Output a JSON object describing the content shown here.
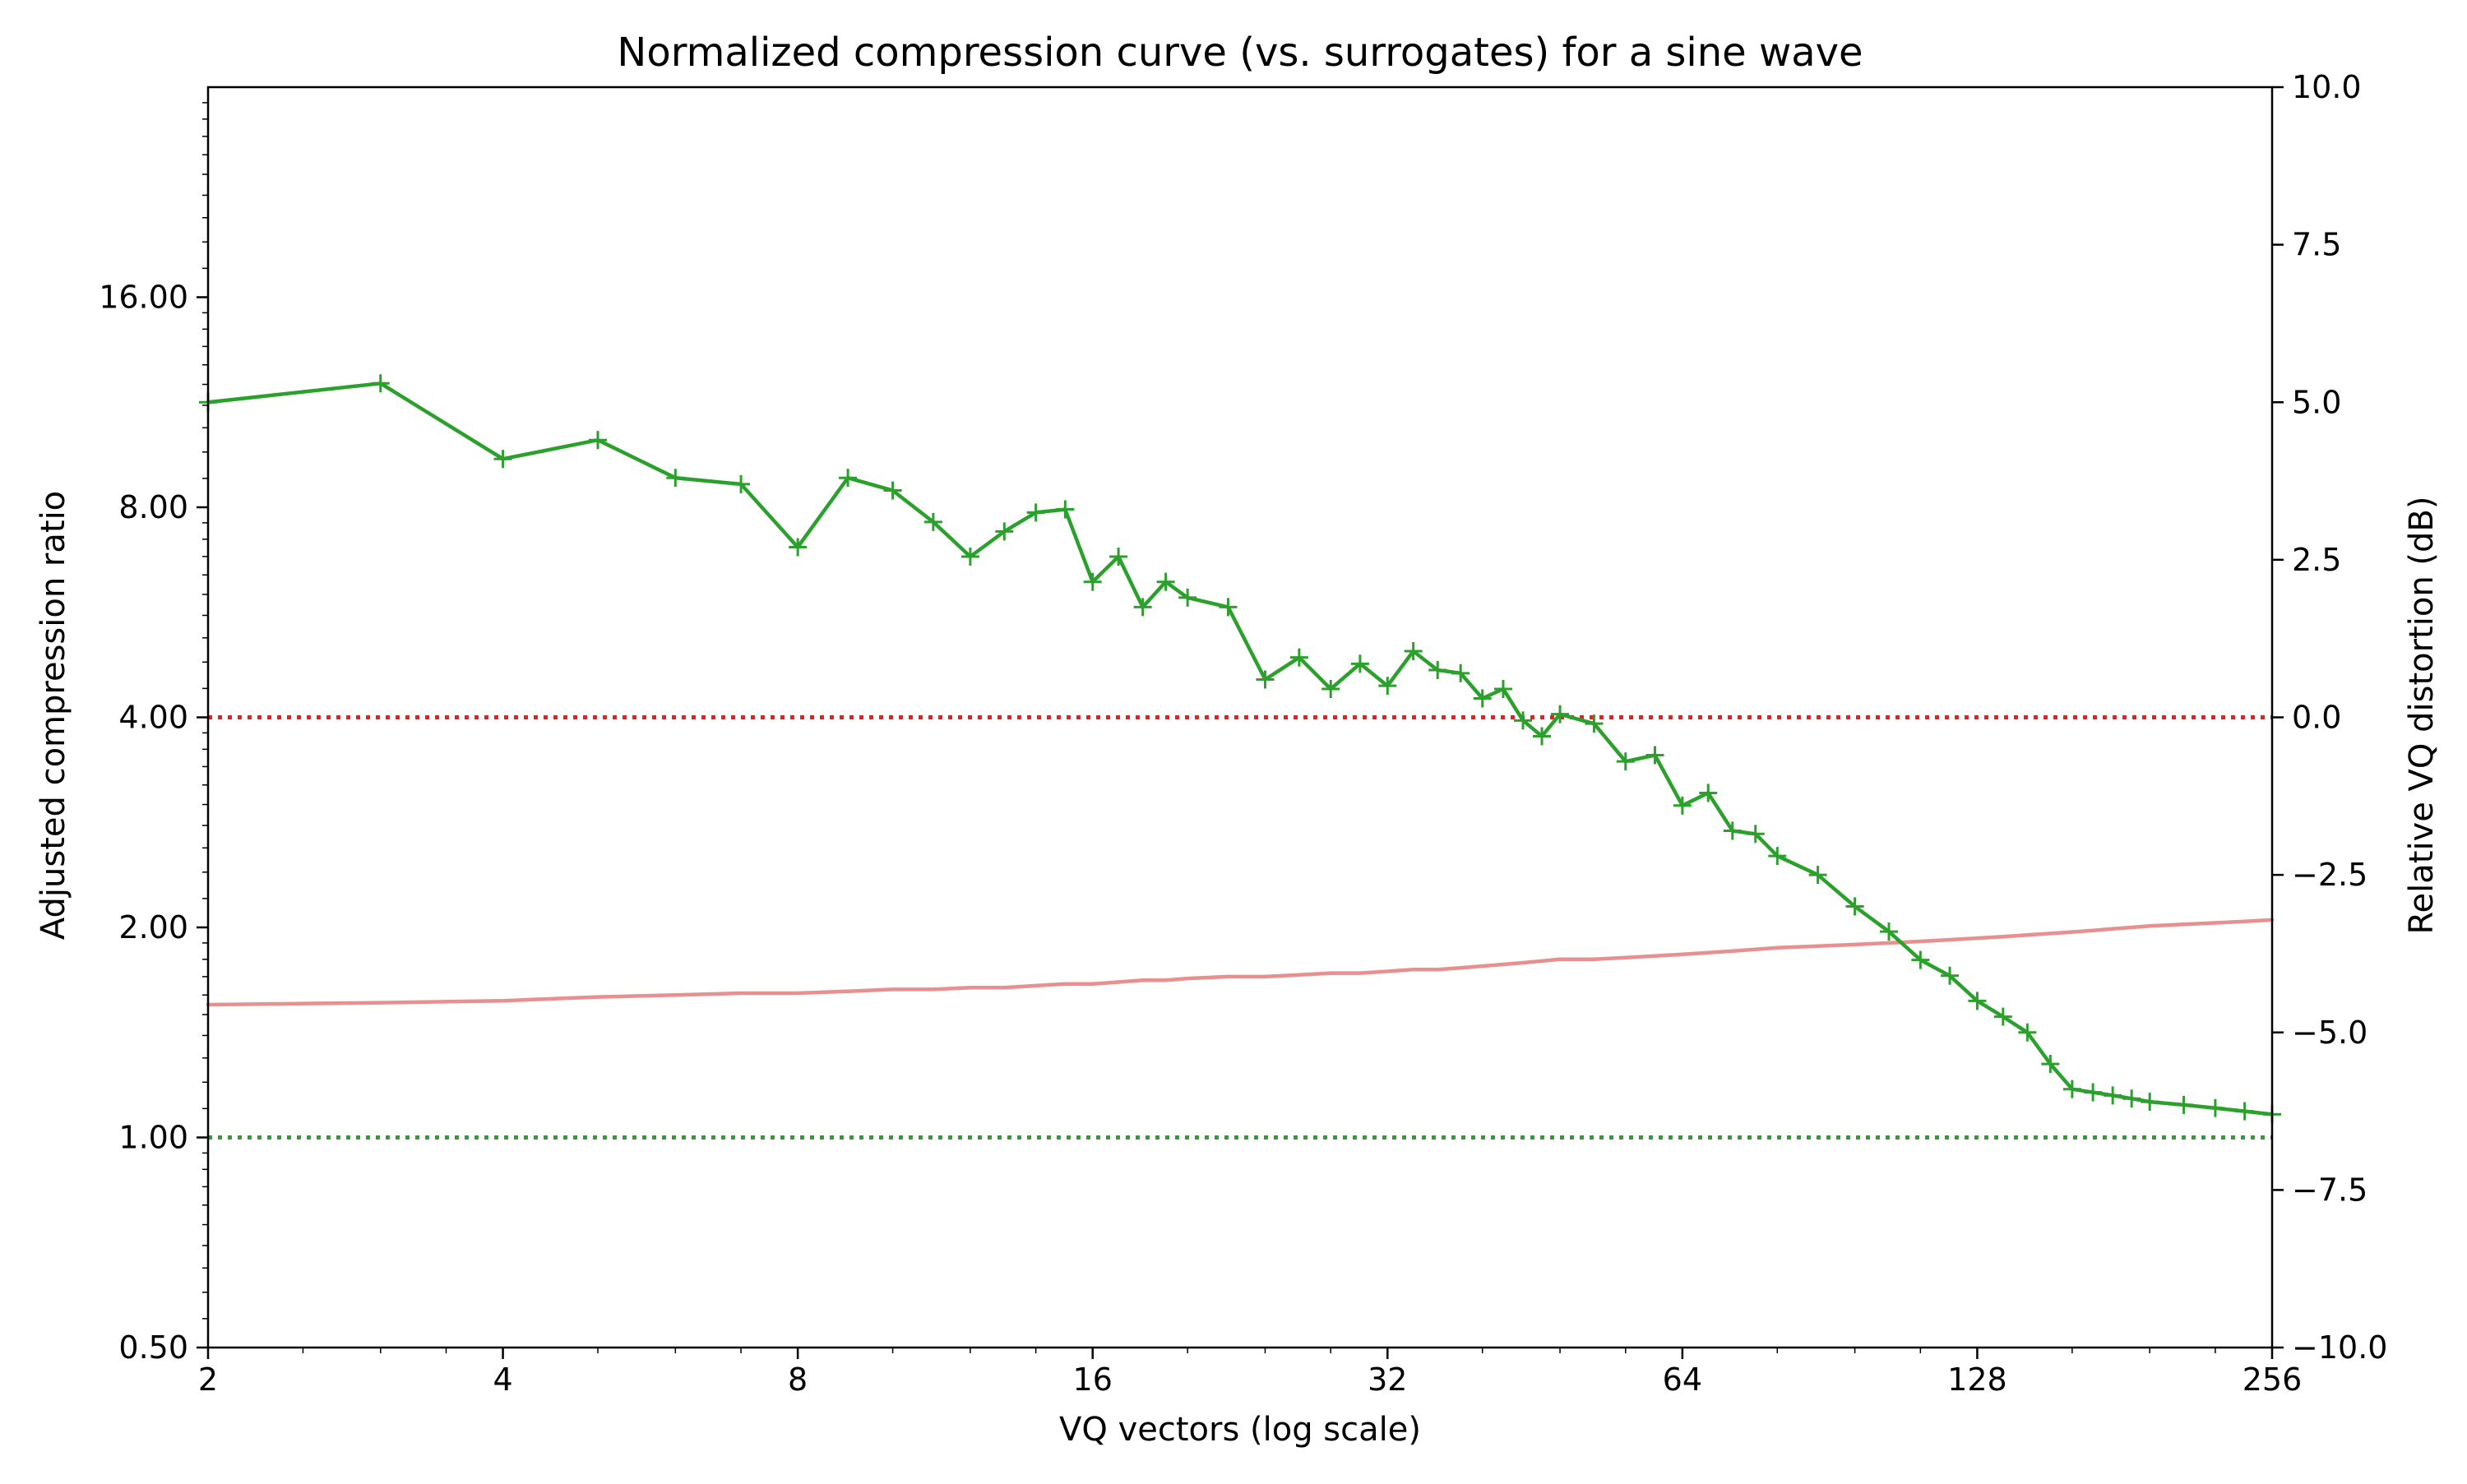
{
  "chart_data": {
    "type": "line",
    "title": "Normalized compression curve (vs. surrogates) for a sine wave",
    "xlabel": "VQ vectors (log scale)",
    "ylabel_left": "Adjusted compression ratio",
    "ylabel_right": "Relative VQ distortion (dB)",
    "x_scale": "log2",
    "xlim": [
      2,
      256
    ],
    "x_ticks": [
      2,
      4,
      8,
      16,
      32,
      64,
      128,
      256
    ],
    "x_tick_labels": [
      "2",
      "4",
      "8",
      "16",
      "32",
      "64",
      "128",
      "256"
    ],
    "y_left_scale": "log2",
    "y_left_lim": [
      0.5,
      32
    ],
    "y_left_ticks": [
      0.5,
      1,
      2,
      4,
      8,
      16
    ],
    "y_left_tick_labels": [
      "0.50",
      "1.00",
      "2.00",
      "4.00",
      "8.00",
      "16.00"
    ],
    "y_right_lim": [
      -10,
      10
    ],
    "y_right_ticks": [
      -10,
      -7.5,
      -5,
      -2.5,
      0,
      2.5,
      5,
      7.5,
      10
    ],
    "y_right_tick_labels": [
      "−10.0",
      "−7.5",
      "−5.0",
      "−2.5",
      "0.0",
      "2.5",
      "5.0",
      "7.5",
      "10.0"
    ],
    "reference_lines": [
      {
        "name": "compression-reference",
        "axis": "left",
        "value": 1.0,
        "color": "#2ca02c",
        "style": "dotted"
      },
      {
        "name": "distortion-reference",
        "axis": "right",
        "value": 0.0,
        "color": "#d62728",
        "style": "dotted"
      }
    ],
    "series": [
      {
        "name": "Adjusted compression ratio",
        "axis": "left",
        "color": "#e88f8f",
        "marker": "none",
        "x": [
          2,
          3,
          4,
          5,
          6,
          7,
          8,
          9,
          10,
          11,
          12,
          13,
          14,
          15,
          16,
          17,
          18,
          19,
          20,
          22,
          24,
          26,
          28,
          30,
          32,
          34,
          36,
          38,
          40,
          42,
          44,
          46,
          48,
          52,
          56,
          60,
          64,
          68,
          72,
          76,
          80,
          88,
          96,
          104,
          112,
          120,
          128,
          136,
          144,
          152,
          160,
          168,
          176,
          184,
          192,
          208,
          224,
          240,
          256
        ],
        "values": [
          1.55,
          1.56,
          1.57,
          1.59,
          1.6,
          1.61,
          1.61,
          1.62,
          1.63,
          1.63,
          1.64,
          1.64,
          1.65,
          1.66,
          1.66,
          1.67,
          1.68,
          1.68,
          1.69,
          1.7,
          1.7,
          1.71,
          1.72,
          1.72,
          1.73,
          1.74,
          1.74,
          1.75,
          1.76,
          1.77,
          1.78,
          1.79,
          1.8,
          1.8,
          1.81,
          1.82,
          1.83,
          1.84,
          1.85,
          1.86,
          1.87,
          1.88,
          1.89,
          1.9,
          1.91,
          1.92,
          1.93,
          1.94,
          1.95,
          1.96,
          1.97,
          1.98,
          1.99,
          2.0,
          2.01,
          2.02,
          2.03,
          2.04,
          2.05
        ]
      },
      {
        "name": "Relative VQ distortion (dB)",
        "axis": "right",
        "color": "#2ca02c",
        "marker": "+",
        "x": [
          2,
          3,
          4,
          5,
          6,
          7,
          8,
          9,
          10,
          11,
          12,
          13,
          14,
          15,
          16,
          17,
          18,
          19,
          20,
          22,
          24,
          26,
          28,
          30,
          32,
          34,
          36,
          38,
          40,
          42,
          44,
          46,
          48,
          52,
          56,
          60,
          64,
          68,
          72,
          76,
          80,
          88,
          96,
          104,
          112,
          120,
          128,
          136,
          144,
          152,
          160,
          168,
          176,
          184,
          192,
          208,
          224,
          240,
          256
        ],
        "values": [
          5.0,
          5.3,
          4.1,
          4.4,
          3.8,
          3.7,
          2.7,
          3.8,
          3.6,
          3.1,
          2.55,
          2.95,
          3.25,
          3.3,
          2.15,
          2.55,
          1.75,
          2.15,
          1.9,
          1.75,
          0.6,
          0.95,
          0.45,
          0.85,
          0.5,
          1.05,
          0.75,
          0.7,
          0.3,
          0.45,
          -0.05,
          -0.3,
          0.05,
          -0.1,
          -0.7,
          -0.6,
          -1.4,
          -1.2,
          -1.8,
          -1.85,
          -2.2,
          -2.5,
          -3.0,
          -3.4,
          -3.85,
          -4.1,
          -4.5,
          -4.75,
          -5.0,
          -5.5,
          -5.9,
          -5.95,
          -6.0,
          -6.05,
          -6.1,
          -6.15,
          -6.2,
          -6.25,
          -6.3
        ]
      }
    ]
  }
}
